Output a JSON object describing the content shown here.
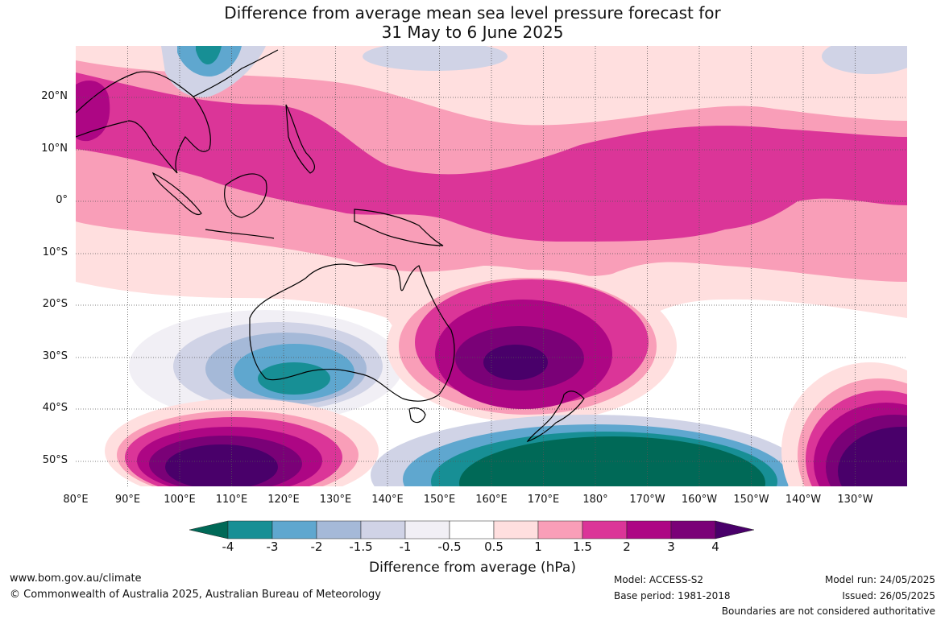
{
  "title_line1": "Difference from average mean sea level pressure forecast for",
  "title_line2": "31 May to 6 June 2025",
  "lat_labels": [
    "20°N",
    "10°N",
    "0°",
    "10°S",
    "20°S",
    "30°S",
    "40°S",
    "50°S"
  ],
  "lon_labels": [
    "80°E",
    "90°E",
    "100°E",
    "110°E",
    "120°E",
    "130°E",
    "140°E",
    "150°E",
    "160°E",
    "170°E",
    "180°",
    "170°W",
    "160°W",
    "150°W",
    "140°W",
    "130°W"
  ],
  "colorbar": {
    "labels": [
      "-4",
      "-3",
      "-2",
      "-1.5",
      "-1",
      "-0.5",
      "0.5",
      "1",
      "1.5",
      "2",
      "3",
      "4"
    ],
    "colors": [
      "#006957",
      "#178f95",
      "#5fa7cf",
      "#a5b9d8",
      "#d0d3e6",
      "#f1eff5",
      "#ffffff",
      "#ffdfdf",
      "#f99eb8",
      "#db3598",
      "#ad0684",
      "#7a0177",
      "#49006a"
    ],
    "title": "Difference from average (hPa)"
  },
  "footer": {
    "website": "www.bom.gov.au/climate",
    "copyright": "© Commonwealth of Australia 2025, Australian Bureau of Meteorology",
    "model": "Model: ACCESS-S2",
    "base_period": "Base period: 1981-2018",
    "model_run": "Model run: 24/05/2025",
    "issued": "Issued: 26/05/2025",
    "disclaimer": "Boundaries are not considered authoritative"
  }
}
